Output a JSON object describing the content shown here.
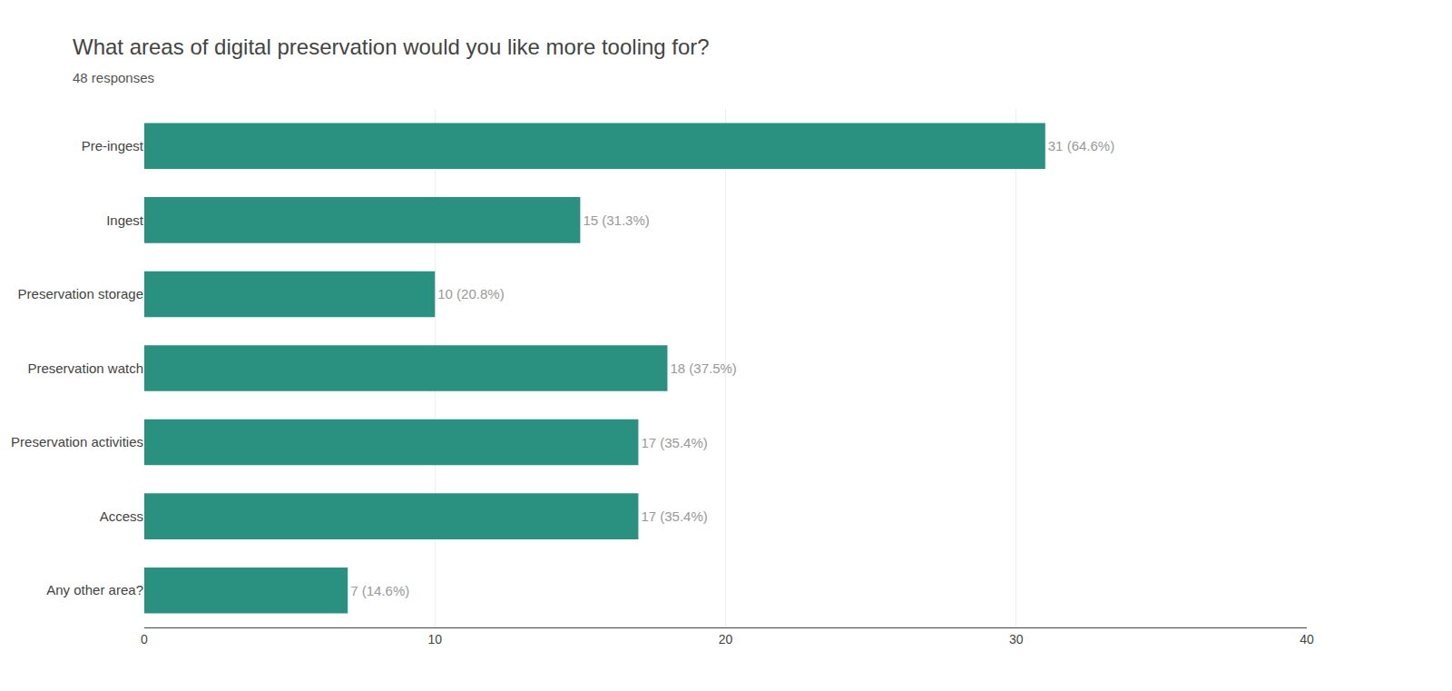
{
  "chart_data": {
    "type": "bar",
    "orientation": "horizontal",
    "title": "What areas of digital preservation would you like more tooling for?",
    "subtitle": "48 responses",
    "categories": [
      "Pre-ingest",
      "Ingest",
      "Preservation storage",
      "Preservation watch",
      "Preservation activities",
      "Access",
      "Any other area?"
    ],
    "values": [
      31,
      15,
      10,
      18,
      17,
      17,
      7
    ],
    "value_labels": [
      "31 (64.6%)",
      "15 (31.3%)",
      "10 (20.8%)",
      "18 (37.5%)",
      "17 (35.4%)",
      "17 (35.4%)",
      "7 (14.6%)"
    ],
    "data_labels": true,
    "color": "#2a9080",
    "xlim": [
      0,
      40
    ],
    "xticks": [
      0,
      10,
      20,
      30,
      40
    ],
    "grid": true
  }
}
